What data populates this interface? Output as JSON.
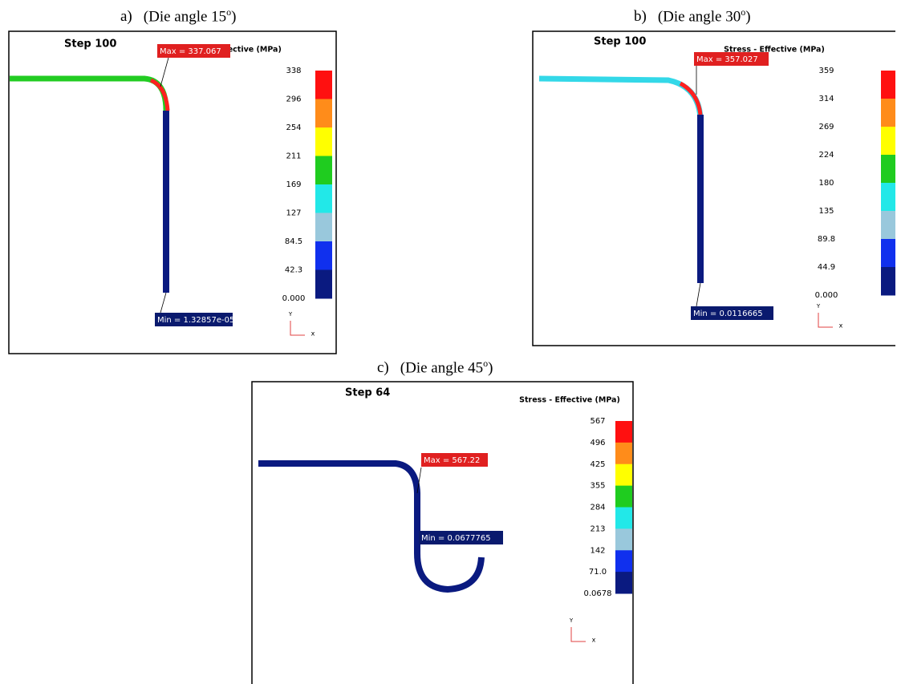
{
  "panels": [
    {
      "label": "a)",
      "caption": "(Die angle 15",
      "caption_sup": "o",
      "caption_end": ")",
      "step": "Step  100",
      "legend_title": "Stress - Effective (MPa)",
      "legend_ticks": [
        "338",
        "296",
        "254",
        "211",
        "169",
        "127",
        "84.5",
        "42.3",
        "0.000"
      ],
      "max_label": "Max = 337.067",
      "min_label": "Min = 1.32857e-05",
      "axis_y": "Y",
      "axis_x": "x"
    },
    {
      "label": "b)",
      "caption": "(Die angle 30",
      "caption_sup": "o",
      "caption_end": ")",
      "step": "Step  100",
      "legend_title": "Stress - Effective (MPa)",
      "legend_ticks": [
        "359",
        "314",
        "269",
        "224",
        "180",
        "135",
        "89.8",
        "44.9",
        "0.000"
      ],
      "max_label": "Max = 357.027",
      "min_label": "Min = 0.0116665",
      "axis_y": "Y",
      "axis_x": "x"
    },
    {
      "label": "c)",
      "caption": "(Die angle 45",
      "caption_sup": "o",
      "caption_end": ")",
      "step": "Step  64",
      "legend_title": "Stress - Effective (MPa)",
      "legend_ticks": [
        "567",
        "496",
        "425",
        "355",
        "284",
        "213",
        "142",
        "71.0",
        "0.0678"
      ],
      "max_label": "Max = 567.22",
      "min_label": "Min = 0.0677765",
      "axis_y": "Y",
      "axis_x": "x"
    }
  ]
}
